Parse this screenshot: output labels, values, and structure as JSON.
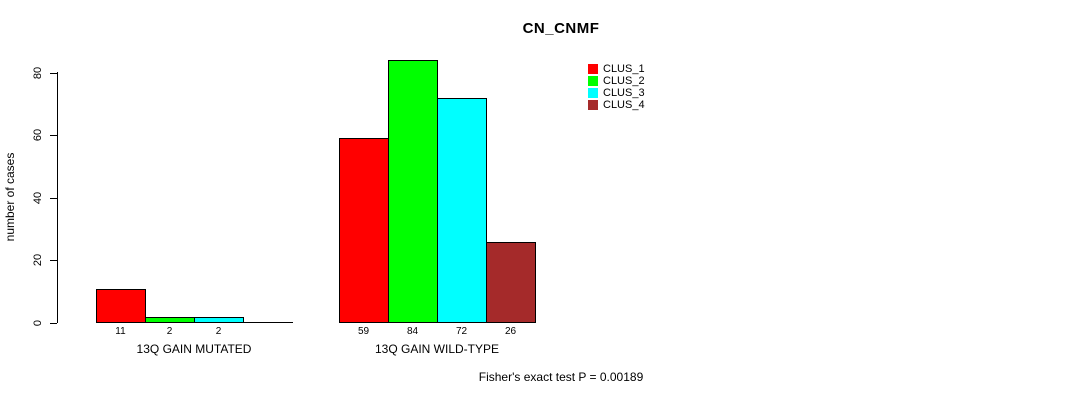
{
  "chart_data": {
    "type": "bar",
    "title": "CN_CNMF",
    "ylabel": "number of cases",
    "xlabel": "",
    "ylim": [
      0,
      80
    ],
    "yticks": [
      0,
      20,
      40,
      60,
      80
    ],
    "grid": false,
    "legend_position": "top-right",
    "series": [
      "CLUS_1",
      "CLUS_2",
      "CLUS_3",
      "CLUS_4"
    ],
    "colors": [
      "#FF0000",
      "#00FF00",
      "#00FFFF",
      "#A52A2A"
    ],
    "groups": [
      {
        "label": "13Q GAIN MUTATED",
        "values": [
          11,
          2,
          2,
          0
        ],
        "bar_labels": [
          "11",
          "2",
          "2",
          ""
        ]
      },
      {
        "label": "13Q GAIN WILD-TYPE",
        "values": [
          59,
          84,
          72,
          26
        ],
        "bar_labels": [
          "59",
          "84",
          "72",
          "26"
        ]
      }
    ],
    "annotation": "Fisher's exact test P = 0.00189"
  }
}
